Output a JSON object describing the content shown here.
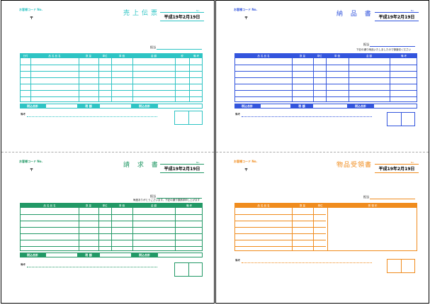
{
  "common": {
    "company_code": "お客様コード No.",
    "postal": "〒",
    "date_no_label": "No.",
    "date": "平成19年2月19日",
    "attention_label": "担当",
    "remarks_label": "備考",
    "total_label": "税込合計",
    "tax_label": "税 額",
    "grand_total_label": "税込合計"
  },
  "forms": [
    {
      "id": "sales-slip",
      "title": "売上伝票",
      "color": "#2ec4c4",
      "columns": [
        "日付",
        "品 名 品 名",
        "数 量",
        "単位",
        "単 価",
        "金 額",
        "税",
        "備 考"
      ]
    },
    {
      "id": "delivery-note",
      "title": "納 品 書",
      "color": "#3355dd",
      "note": "下記の通り納品いたしましたので御査収ください",
      "columns": [
        "品 名 品 名",
        "数 量",
        "単位",
        "単 価",
        "金 額",
        "備 考"
      ]
    },
    {
      "id": "invoice",
      "title": "請 求 書",
      "color": "#229966",
      "note": "毎度ありがとうございます。下記の通り御請求申し上げます",
      "columns": [
        "品 名 品 名",
        "数 量",
        "単位",
        "単 価",
        "金 額",
        "備 考"
      ]
    },
    {
      "id": "receipt",
      "title": "物品受領書",
      "color": "#f08c1e",
      "columns": [
        "品 名 品 名",
        "数 量",
        "単位",
        "受 領 印"
      ]
    }
  ]
}
